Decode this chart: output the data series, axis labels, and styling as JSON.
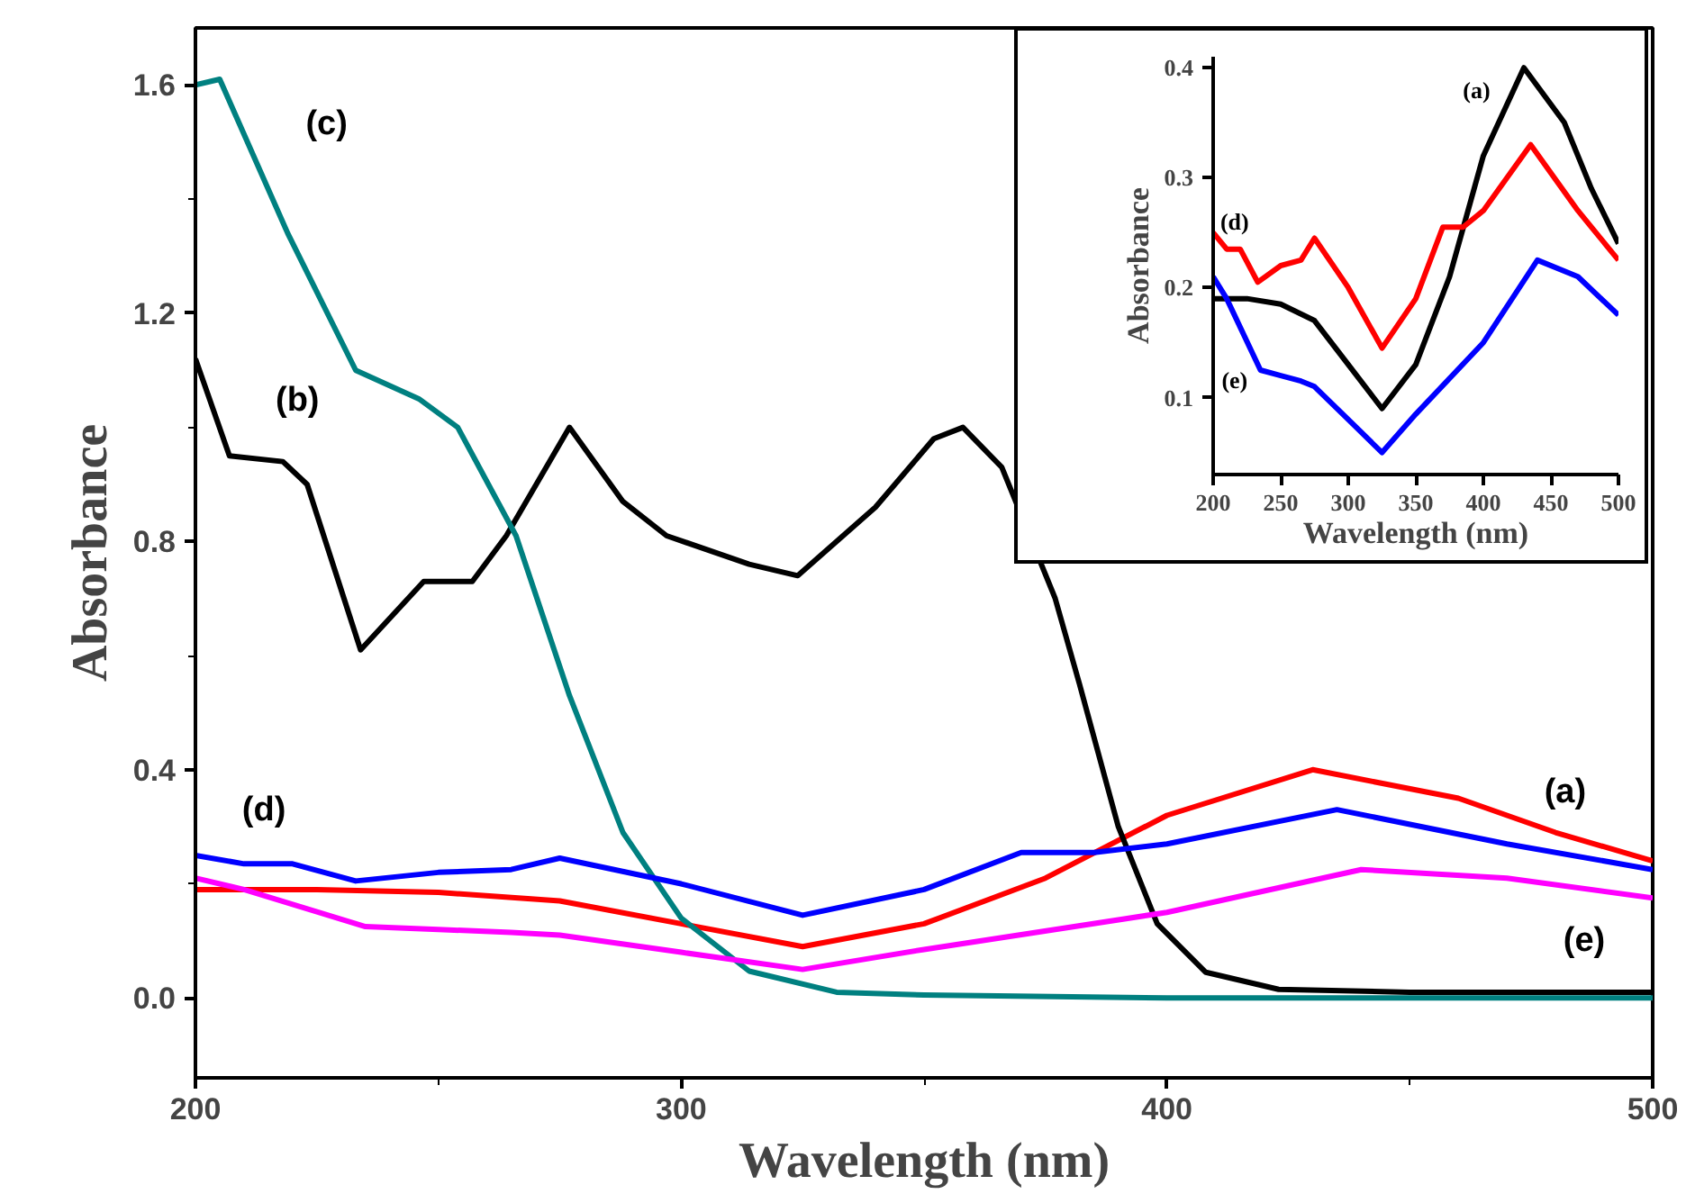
{
  "chart_data": [
    {
      "type": "line",
      "xlabel": "Wavelength (nm)",
      "ylabel": "Absorbance",
      "xlim": [
        200,
        500
      ],
      "ylim": [
        -0.14,
        1.7
      ],
      "xticks": [
        200,
        300,
        400,
        500
      ],
      "yticks": [
        {
          "value": 0.0,
          "label": "0.0"
        },
        0.4,
        0.8,
        1.2,
        1.6
      ],
      "grid": false,
      "marker": "none",
      "line_style": "solid",
      "series": [
        {
          "name": "(a)",
          "color": "#ff0000",
          "x": [
            200,
            225,
            250,
            275,
            300,
            325,
            350,
            375,
            400,
            430,
            460,
            480,
            500
          ],
          "values": [
            0.19,
            0.19,
            0.185,
            0.17,
            0.13,
            0.09,
            0.13,
            0.21,
            0.32,
            0.4,
            0.35,
            0.29,
            0.24
          ]
        },
        {
          "name": "(b)",
          "color": "#000000",
          "x": [
            200,
            207,
            218,
            223,
            234,
            247,
            257,
            264,
            277,
            288,
            297,
            314,
            324,
            340,
            352,
            358,
            366,
            377,
            382,
            390,
            398,
            408,
            423,
            450,
            500
          ],
          "values": [
            1.12,
            0.95,
            0.94,
            0.9,
            0.61,
            0.73,
            0.73,
            0.81,
            1.0,
            0.87,
            0.81,
            0.76,
            0.74,
            0.86,
            0.98,
            1.0,
            0.93,
            0.7,
            0.55,
            0.3,
            0.13,
            0.045,
            0.015,
            0.01,
            0.01
          ]
        },
        {
          "name": "(c)",
          "color": "#008080",
          "x": [
            200,
            205,
            219,
            233,
            246,
            254,
            266,
            277,
            288,
            300,
            314,
            332,
            350,
            400,
            450,
            500
          ],
          "values": [
            1.6,
            1.61,
            1.34,
            1.1,
            1.05,
            1.0,
            0.81,
            0.53,
            0.29,
            0.14,
            0.047,
            0.01,
            0.005,
            0.0,
            0.0,
            0.0
          ]
        },
        {
          "name": "(d)",
          "color": "#0000ff",
          "x": [
            200,
            210,
            220,
            233,
            250,
            265,
            275,
            300,
            325,
            350,
            370,
            385,
            400,
            435,
            470,
            500
          ],
          "values": [
            0.25,
            0.235,
            0.235,
            0.205,
            0.22,
            0.225,
            0.245,
            0.2,
            0.145,
            0.19,
            0.255,
            0.255,
            0.27,
            0.33,
            0.27,
            0.225
          ]
        },
        {
          "name": "(e)",
          "color": "#ff00ff",
          "x": [
            200,
            210,
            235,
            250,
            265,
            275,
            300,
            325,
            350,
            400,
            440,
            470,
            500
          ],
          "values": [
            0.21,
            0.19,
            0.125,
            0.12,
            0.115,
            0.11,
            0.08,
            0.05,
            0.085,
            0.15,
            0.225,
            0.21,
            0.175
          ]
        }
      ]
    },
    {
      "type": "line",
      "xlabel": "Wavelength (nm)",
      "ylabel": "Absorbance",
      "xlim": [
        200,
        500
      ],
      "ylim": [
        0.03,
        0.41
      ],
      "xticks": [
        200,
        250,
        300,
        350,
        400,
        450,
        500
      ],
      "yticks": [
        0.1,
        0.2,
        0.3,
        0.4
      ],
      "grid": false,
      "marker": "none",
      "line_style": "solid",
      "series": [
        {
          "name": "(a)",
          "color": "#000000",
          "x": [
            200,
            225,
            250,
            275,
            300,
            325,
            350,
            375,
            400,
            430,
            460,
            480,
            500
          ],
          "values": [
            0.19,
            0.19,
            0.185,
            0.17,
            0.13,
            0.09,
            0.13,
            0.21,
            0.32,
            0.4,
            0.35,
            0.29,
            0.24
          ]
        },
        {
          "name": "(d)",
          "color": "#ff0000",
          "x": [
            200,
            210,
            220,
            233,
            250,
            265,
            275,
            300,
            325,
            350,
            370,
            385,
            400,
            435,
            470,
            500
          ],
          "values": [
            0.25,
            0.235,
            0.235,
            0.205,
            0.22,
            0.225,
            0.245,
            0.2,
            0.145,
            0.19,
            0.255,
            0.255,
            0.27,
            0.33,
            0.27,
            0.225
          ]
        },
        {
          "name": "(e)",
          "color": "#0000ff",
          "x": [
            200,
            210,
            235,
            250,
            265,
            275,
            300,
            325,
            350,
            400,
            440,
            470,
            500
          ],
          "values": [
            0.21,
            0.19,
            0.125,
            0.12,
            0.115,
            0.11,
            0.08,
            0.05,
            0.085,
            0.15,
            0.225,
            0.21,
            0.175
          ]
        }
      ]
    }
  ]
}
